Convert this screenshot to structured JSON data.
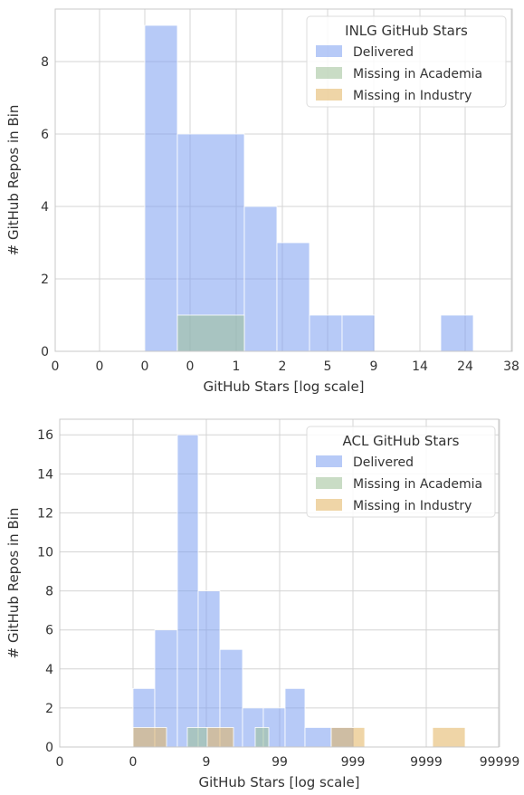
{
  "colors": {
    "delivered": "#7c9ff0",
    "academia": "#9dbf95",
    "industry": "#e2b25e",
    "grid": "#d4d4d4",
    "frame": "#c8c8c8",
    "text": "#333333"
  },
  "chart_data": [
    {
      "type": "histogram",
      "x_scale": "log",
      "xlabel": "GitHub Stars [log scale]",
      "ylabel": "# GitHub Repos in Bin",
      "xticks": [
        "0",
        "0",
        "0",
        "0",
        "1",
        "2",
        "5",
        "9",
        "14",
        "24",
        "38"
      ],
      "yticks": [
        0,
        2,
        4,
        6,
        8
      ],
      "ylim": [
        0,
        9.45
      ],
      "grid": true,
      "legend": {
        "title": "INLG GitHub Stars",
        "placement": "top-right"
      },
      "series": [
        {
          "name": "Delivered",
          "bins": [
            {
              "from": "0",
              "to": "0",
              "count": 9
            },
            {
              "from": "0",
              "to": "1",
              "count": 6
            },
            {
              "from": "1",
              "to": "2",
              "count": 4
            },
            {
              "from": "2",
              "to": "3",
              "count": 3
            },
            {
              "from": "3",
              "to": "6",
              "count": 1
            },
            {
              "from": "6",
              "to": "9",
              "count": 1
            },
            {
              "from": "19",
              "to": "29",
              "count": 1
            }
          ]
        },
        {
          "name": "Missing in Academia",
          "bins": [
            {
              "from": "0",
              "to": "1",
              "count": 1
            }
          ]
        },
        {
          "name": "Missing in Industry",
          "bins": []
        }
      ]
    },
    {
      "type": "histogram",
      "x_scale": "log",
      "xlabel": "GitHub Stars [log scale]",
      "ylabel": "# GitHub Repos in Bin",
      "xticks": [
        "0",
        "0",
        "9",
        "99",
        "999",
        "9999",
        "99999"
      ],
      "yticks": [
        0,
        2,
        4,
        6,
        8,
        10,
        12,
        14,
        16
      ],
      "ylim": [
        0,
        16.8
      ],
      "grid": true,
      "legend": {
        "title": "ACL GitHub Stars",
        "placement": "top-right"
      },
      "series": [
        {
          "name": "Delivered",
          "bins": [
            {
              "from": "0",
              "to": "1",
              "count": 3
            },
            {
              "from": "1",
              "to": "3",
              "count": 6
            },
            {
              "from": "3",
              "to": "5",
              "count": 16
            },
            {
              "from": "5",
              "to": "12",
              "count": 8
            },
            {
              "from": "12",
              "to": "30",
              "count": 5
            },
            {
              "from": "30",
              "to": "60",
              "count": 2
            },
            {
              "from": "60",
              "to": "120",
              "count": 2
            },
            {
              "from": "120",
              "to": "250",
              "count": 3
            },
            {
              "from": "250",
              "to": "600",
              "count": 1
            },
            {
              "from": "600",
              "to": "1200",
              "count": 1
            }
          ]
        },
        {
          "name": "Missing in Academia",
          "bins": [
            {
              "from": "4",
              "to": "7",
              "count": 1
            },
            {
              "from": "50",
              "to": "80",
              "count": 1
            }
          ]
        },
        {
          "name": "Missing in Industry",
          "bins": [
            {
              "from": "0",
              "to": "2",
              "count": 1
            },
            {
              "from": "7",
              "to": "18",
              "count": 1
            },
            {
              "from": "600",
              "to": "1500",
              "count": 1
            },
            {
              "from": "15000",
              "to": "35000",
              "count": 1
            }
          ]
        }
      ]
    }
  ]
}
